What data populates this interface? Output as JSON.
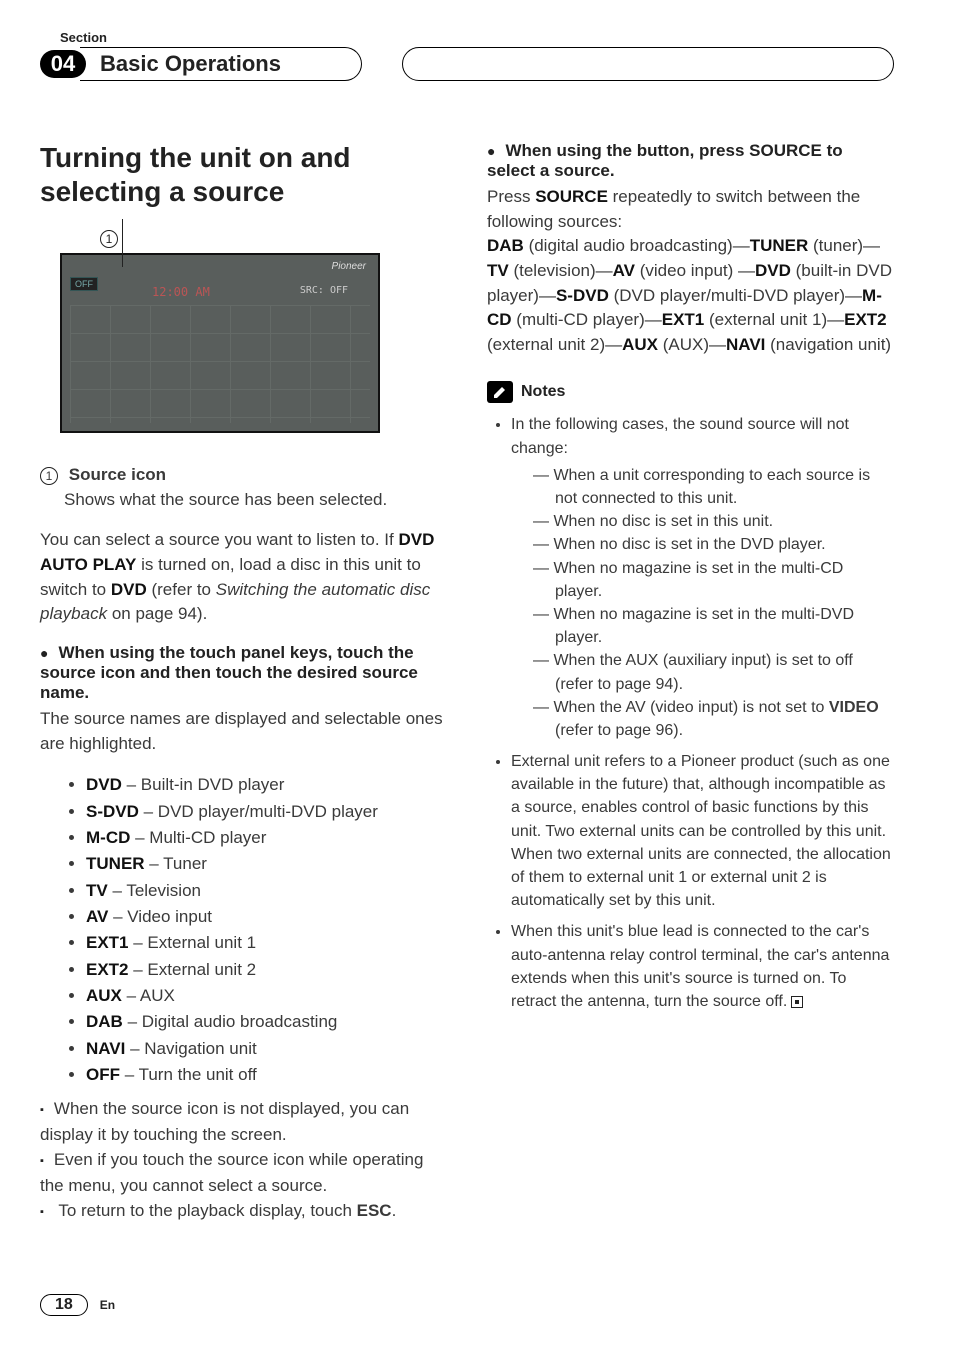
{
  "section_label": "Section",
  "section_number": "04",
  "chapter_title": "Basic Operations",
  "h2": "Turning the unit on and selecting a source",
  "callout_num": "1",
  "screenshot": {
    "off": "OFF",
    "clock": "12:00 AM",
    "brand": "Pioneer",
    "src_label": "SRC:",
    "src_val": "OFF"
  },
  "source_icon_label": "Source icon",
  "source_icon_desc": "Shows what the source has been selected.",
  "intro_pre": "You can select a source you want to listen to. If ",
  "intro_b1": "DVD AUTO PLAY",
  "intro_mid1": " is turned on, load a disc in this unit to switch to ",
  "intro_b2": "DVD",
  "intro_mid2": " (refer to ",
  "intro_ital": "Switching the automatic disc playback",
  "intro_post": " on page 94).",
  "touch_head": "When using the touch panel keys, touch the source icon and then touch the desired source name.",
  "touch_desc": "The source names are displayed and selectable ones are highlighted.",
  "sources": [
    {
      "k": "DVD",
      "v": " – Built-in DVD player"
    },
    {
      "k": "S-DVD",
      "v": " – DVD player/multi-DVD player"
    },
    {
      "k": "M-CD",
      "v": " – Multi-CD player"
    },
    {
      "k": "TUNER",
      "v": " – Tuner"
    },
    {
      "k": "TV",
      "v": " – Television"
    },
    {
      "k": "AV",
      "v": " – Video input"
    },
    {
      "k": "EXT1",
      "v": " – External unit 1"
    },
    {
      "k": "EXT2",
      "v": " – External unit 2"
    },
    {
      "k": "AUX",
      "v": " – AUX"
    },
    {
      "k": "DAB",
      "v": " – Digital audio broadcasting"
    },
    {
      "k": "NAVI",
      "v": " – Navigation unit"
    },
    {
      "k": "OFF",
      "v": " – Turn the unit off"
    }
  ],
  "sq1": "When the source icon is not displayed, you can display it by touching the screen.",
  "sq2": "Even if you touch the source icon while operating the menu, you cannot select a source.",
  "sq3_pre": "To return to the playback display, touch ",
  "sq3_b": "ESC",
  "sq3_post": ".",
  "button_head": "When using the button, press SOURCE to select a source.",
  "press_pre": "Press ",
  "press_b": "SOURCE",
  "press_post": " repeatedly to switch between the following sources:",
  "chain": [
    {
      "b": "DAB",
      "t": " (digital audio broadcasting)—"
    },
    {
      "b": "TUNER",
      "t": " (tuner)—"
    },
    {
      "b": "TV",
      "t": " (television)—"
    },
    {
      "b": "AV",
      "t": " (video input) —"
    },
    {
      "b": "DVD",
      "t": " (built-in DVD player)—"
    },
    {
      "b": "S-DVD",
      "t": " (DVD player/multi-DVD player)—"
    },
    {
      "b": "M-CD",
      "t": " (multi-CD player)—"
    },
    {
      "b": "EXT1",
      "t": " (external unit 1)—"
    },
    {
      "b": "EXT2",
      "t": " (external unit 2)—"
    },
    {
      "b": "AUX",
      "t": " (AUX)—"
    },
    {
      "b": "NAVI",
      "t": " (navigation unit)"
    }
  ],
  "notes_label": "Notes",
  "note1_lead": "In the following cases, the sound source will not change:",
  "note1_items": [
    "When a unit corresponding to each source is not connected to this unit.",
    "When no disc is set in this unit.",
    "When no disc is set in the DVD player.",
    "When no magazine is set in the multi-CD player.",
    "When no magazine is set in the multi-DVD player."
  ],
  "note1_aux_pre": "When the AUX (auxiliary input) is set to off (refer to page 94).",
  "note1_av_pre": "When the AV (video input) is not set to ",
  "note1_av_b": "VIDEO",
  "note1_av_post": " (refer to page 96).",
  "note2": "External unit refers to a Pioneer product (such as one available in the future) that, although incompatible as a source, enables control of basic functions by this unit. Two external units can be controlled by this unit. When two external units are connected, the allocation of them to external unit 1 or external unit 2 is automatically set by this unit.",
  "note3": "When this unit's blue lead is connected to the car's auto-antenna relay control terminal, the car's antenna extends when this unit's source is turned on. To retract the antenna, turn the source off.",
  "page_number": "18",
  "lang": "En"
}
